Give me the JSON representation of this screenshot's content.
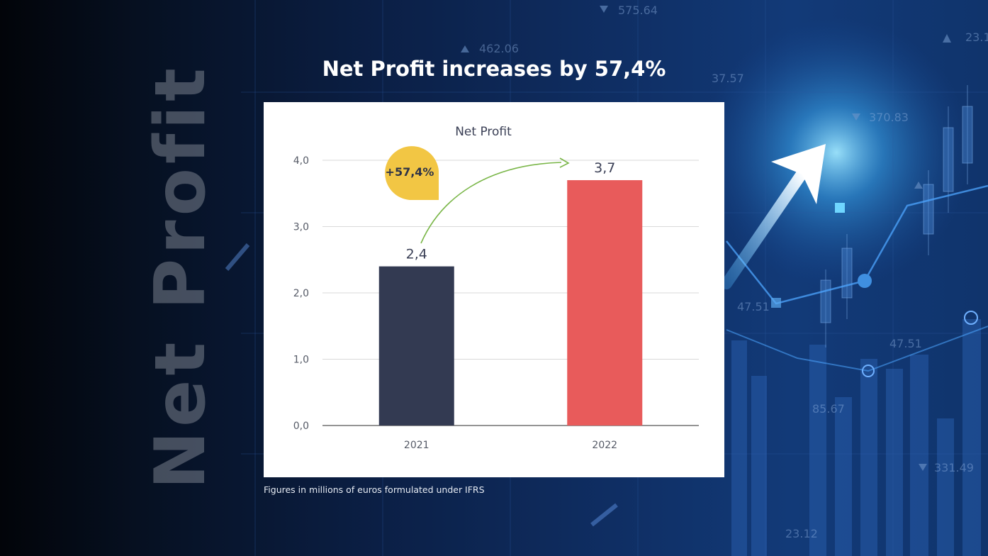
{
  "headline": "Net Profit increases by 57,4%",
  "side_title": "Net Profit",
  "footnote": "Figures in millions of euros formulated under IFRS",
  "bubble_label": "+57,4%",
  "colors": {
    "bar_2021": "#333a52",
    "bar_2022": "#e85b5b",
    "bubble": "#f2c644",
    "arrow": "#7ab648",
    "grid": "#d9d9d9"
  },
  "chart_data": {
    "type": "bar",
    "title": "Net Profit",
    "categories": [
      "2021",
      "2022"
    ],
    "values": [
      2.4,
      3.7
    ],
    "value_labels": [
      "2,4",
      "3,7"
    ],
    "yticks": [
      0,
      1,
      2,
      3,
      4
    ],
    "ytick_labels": [
      "0,0",
      "1,0",
      "2,0",
      "3,0",
      "4,0"
    ],
    "ylim": [
      0,
      4
    ],
    "xlabel": "",
    "ylabel": "",
    "grid": true,
    "legend": "none"
  },
  "background_numbers": [
    "575.64",
    "23.1",
    "462.06",
    "37.57",
    "370.83",
    "47.51",
    "47.51",
    "85.67",
    "331.49",
    "23.12"
  ]
}
